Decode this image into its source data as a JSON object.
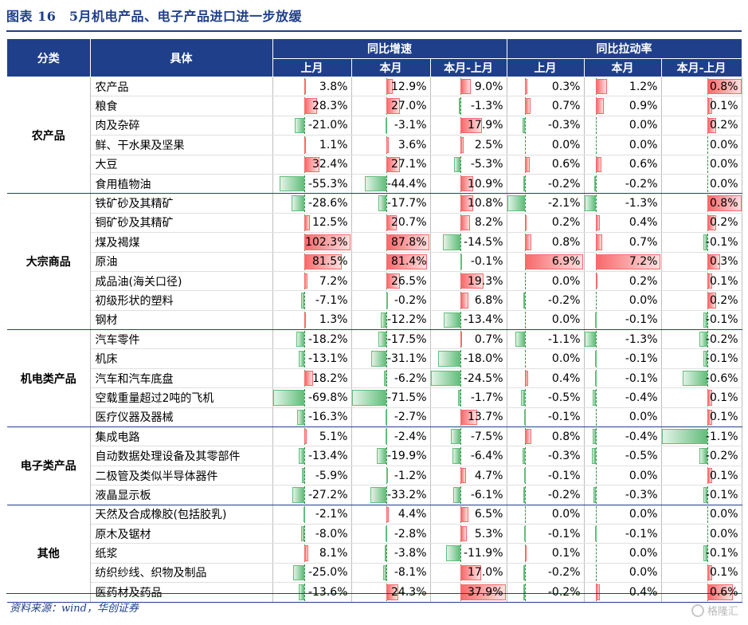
{
  "title": "图表 16　5月机电产品、电子产品进口进一步放缓",
  "source": "资料来源：wind，华创证券",
  "watermark": "格隆汇",
  "headers": {
    "category": "分类",
    "item": "具体",
    "group1": "同比增速",
    "group2": "同比拉动率",
    "sub": [
      "上月",
      "本月",
      "本月-上月",
      "上月",
      "本月",
      "本月-上月"
    ]
  },
  "colors": {
    "header_bg": "#1f3f8a",
    "positive_bar": "#f8696b",
    "negative_bar": "#63be7b"
  },
  "groups": [
    {
      "name": "农产品",
      "rows": [
        {
          "item": "农产品",
          "v": [
            "3.8%",
            "12.9%",
            "9.0%",
            "0.3%",
            "1.2%",
            "0.8%"
          ]
        },
        {
          "item": "粮食",
          "v": [
            "28.3%",
            "27.0%",
            "-1.3%",
            "0.7%",
            "0.9%",
            "0.1%"
          ]
        },
        {
          "item": "肉及杂碎",
          "v": [
            "-21.0%",
            "-3.1%",
            "17.9%",
            "-0.3%",
            "0.0%",
            "0.2%"
          ]
        },
        {
          "item": "鲜、干水果及坚果",
          "v": [
            "1.1%",
            "3.6%",
            "2.5%",
            "0.0%",
            "0.0%",
            "0.0%"
          ]
        },
        {
          "item": "大豆",
          "v": [
            "32.4%",
            "27.1%",
            "-5.3%",
            "0.6%",
            "0.6%",
            "0.0%"
          ]
        },
        {
          "item": "食用植物油",
          "v": [
            "-55.3%",
            "-44.4%",
            "10.9%",
            "-0.2%",
            "-0.2%",
            "0.0%"
          ]
        }
      ]
    },
    {
      "name": "大宗商品",
      "rows": [
        {
          "item": "铁矿砂及其精矿",
          "v": [
            "-28.6%",
            "-17.7%",
            "10.8%",
            "-2.1%",
            "-1.3%",
            "0.8%"
          ]
        },
        {
          "item": "铜矿砂及其精矿",
          "v": [
            "12.5%",
            "20.7%",
            "8.2%",
            "0.2%",
            "0.4%",
            "0.2%"
          ]
        },
        {
          "item": "煤及褐煤",
          "v": [
            "102.3%",
            "87.8%",
            "-14.5%",
            "0.8%",
            "0.7%",
            "-0.1%"
          ]
        },
        {
          "item": "原油",
          "v": [
            "81.5%",
            "81.4%",
            "-0.1%",
            "6.9%",
            "7.2%",
            "0.3%"
          ]
        },
        {
          "item": "成品油(海关口径)",
          "v": [
            "7.2%",
            "26.5%",
            "19.3%",
            "0.0%",
            "0.2%",
            "0.1%"
          ]
        },
        {
          "item": "初级形状的塑料",
          "v": [
            "-7.1%",
            "-0.2%",
            "6.8%",
            "-0.2%",
            "0.0%",
            "0.2%"
          ]
        },
        {
          "item": "钢材",
          "v": [
            "1.3%",
            "-12.2%",
            "-13.4%",
            "0.0%",
            "-0.1%",
            "-0.1%"
          ]
        }
      ]
    },
    {
      "name": "机电类产品",
      "rows": [
        {
          "item": "汽车零件",
          "v": [
            "-18.2%",
            "-17.5%",
            "0.7%",
            "-1.1%",
            "-1.3%",
            "-0.2%"
          ]
        },
        {
          "item": "机床",
          "v": [
            "-13.1%",
            "-31.1%",
            "-18.0%",
            "0.0%",
            "-0.1%",
            "-0.1%"
          ]
        },
        {
          "item": "汽车和汽车底盘",
          "v": [
            "18.2%",
            "-6.2%",
            "-24.5%",
            "0.4%",
            "-0.1%",
            "-0.6%"
          ]
        },
        {
          "item": "空载重量超过2吨的飞机",
          "v": [
            "-69.8%",
            "-71.5%",
            "-1.7%",
            "-0.5%",
            "-0.4%",
            "0.1%"
          ]
        },
        {
          "item": "医疗仪器及器械",
          "v": [
            "-16.3%",
            "-2.7%",
            "13.7%",
            "-0.1%",
            "0.0%",
            "0.1%"
          ]
        }
      ]
    },
    {
      "name": "电子类产品",
      "rows": [
        {
          "item": "集成电路",
          "v": [
            "5.1%",
            "-2.4%",
            "-7.5%",
            "0.8%",
            "-0.4%",
            "-1.1%"
          ]
        },
        {
          "item": "自动数据处理设备及其零部件",
          "v": [
            "-13.4%",
            "-19.9%",
            "-6.4%",
            "-0.3%",
            "-0.5%",
            "-0.2%"
          ]
        },
        {
          "item": "二极管及类似半导体器件",
          "v": [
            "-5.9%",
            "-1.2%",
            "4.7%",
            "-0.1%",
            "0.0%",
            "0.1%"
          ]
        },
        {
          "item": "液晶显示板",
          "v": [
            "-27.2%",
            "-33.2%",
            "-6.1%",
            "-0.2%",
            "-0.3%",
            "-0.1%"
          ]
        }
      ]
    },
    {
      "name": "其他",
      "rows": [
        {
          "item": "天然及合成橡胶(包括胶乳)",
          "v": [
            "-2.1%",
            "4.4%",
            "6.5%",
            "0.0%",
            "0.0%",
            "0.0%"
          ]
        },
        {
          "item": "原木及锯材",
          "v": [
            "-8.0%",
            "-2.8%",
            "5.3%",
            "-0.1%",
            "-0.1%",
            "0.0%"
          ]
        },
        {
          "item": "纸浆",
          "v": [
            "8.1%",
            "-3.8%",
            "-11.9%",
            "0.1%",
            "0.0%",
            "-0.1%"
          ]
        },
        {
          "item": "纺织纱线、织物及制品",
          "v": [
            "-25.0%",
            "-8.1%",
            "17.0%",
            "-0.2%",
            "0.0%",
            "0.1%"
          ]
        },
        {
          "item": "医药材及药品",
          "v": [
            "-13.6%",
            "24.3%",
            "37.9%",
            "-0.2%",
            "0.4%",
            "0.6%"
          ]
        }
      ]
    }
  ]
}
